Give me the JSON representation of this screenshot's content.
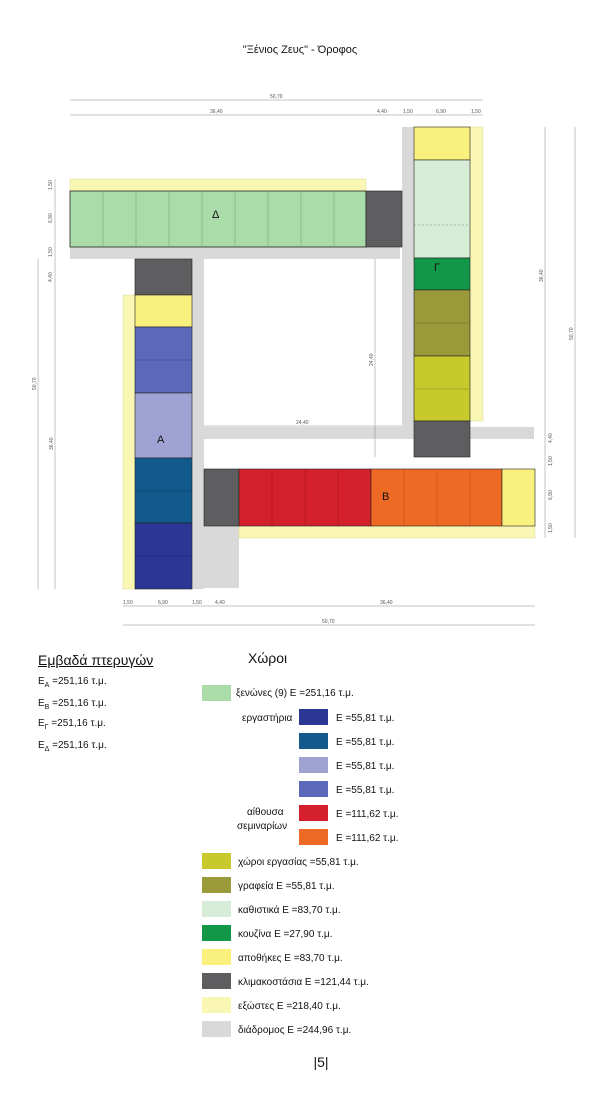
{
  "title": "\"Ξένιος Ζευς\" - Όροφος",
  "colors": {
    "guest": "#a9dca8",
    "lab1": "#2c3795",
    "lab2": "#135a8c",
    "lab3": "#a0a2d4",
    "lab4": "#5c68b9",
    "seminar_red": "#d4202b",
    "seminar_orange": "#ee6a24",
    "workspace": "#c8c92c",
    "offices": "#9a9a3a",
    "seating": "#d6ecd6",
    "kitchen": "#129647",
    "storage": "#f9f07e",
    "stairs": "#5e5e60",
    "balcony": "#faf7b4",
    "corridor": "#d9d9d9"
  },
  "plan": {
    "wing_labels": {
      "a": "Α",
      "b": "Β",
      "c": "Γ",
      "d": "Δ"
    },
    "dims": {
      "top_total": "50,70",
      "top_d": "36,40",
      "top_stair": "4,40",
      "top_b1": "1,50",
      "top_c": "6,90",
      "top_b2": "1,50",
      "left_top_1": "1,50",
      "left_top_2": "6,90",
      "left_top_3": "1,50",
      "left_top_4": "4,40",
      "left_total": "50,70",
      "left_a": "36,40",
      "mid_v": "24,40",
      "mid_h": "24,40",
      "right_c": "36,40",
      "right_total": "50,70",
      "right_b_1": "4,40",
      "right_b_2": "1,50",
      "right_b_3": "6,90",
      "right_b_4": "1,50",
      "bot_1": "1,50",
      "bot_2": "6,90",
      "bot_3": "1,50",
      "bot_4": "4,40",
      "bot_5": "36,40",
      "bot_total": "50,70"
    }
  },
  "areas": {
    "title": "Εμβαδά πτερυγών",
    "rows": [
      {
        "pre": "E",
        "sub": "A",
        "post": " =251,16 τ.μ."
      },
      {
        "pre": "E",
        "sub": "B",
        "post": " =251,16 τ.μ."
      },
      {
        "pre": "E",
        "sub": "Γ",
        "post": " =251,16 τ.μ."
      },
      {
        "pre": "E",
        "sub": "Δ",
        "post": " =251,16 τ.μ."
      }
    ]
  },
  "legend": {
    "title": "Χώροι",
    "guest": "ξενώνες (9) Ε =251,16 τ.μ.",
    "labs_label": "εργαστήρια",
    "lab1": "Ε =55,81 τ.μ.",
    "lab2": "Ε =55,81 τ.μ.",
    "lab3": "Ε =55,81 τ.μ.",
    "lab4": "Ε =55,81 τ.μ.",
    "seminar_label_1": "αίθουσα",
    "seminar_label_2": "σεμιναρίων",
    "sem1": "Ε =111,62 τ.μ.",
    "sem2": "Ε =111,62 τ.μ.",
    "workspace": "χώροι εργασίας =55,81 τ.μ.",
    "offices": "γραφεία Ε =55,81 τ.μ.",
    "seating": "καθιστικά Ε =83,70 τ.μ.",
    "kitchen": "κουζίνα Ε =27,90 τ.μ.",
    "storage": "αποθήκες Ε =83,70 τ.μ.",
    "stairs": "κλιμακοστάσια Ε =121,44 τ.μ.",
    "balcony": "εξώστες Ε =218,40 τ.μ.",
    "corridor": "διάδρομος Ε =244,96 τ.μ."
  },
  "page_number": "|5|"
}
